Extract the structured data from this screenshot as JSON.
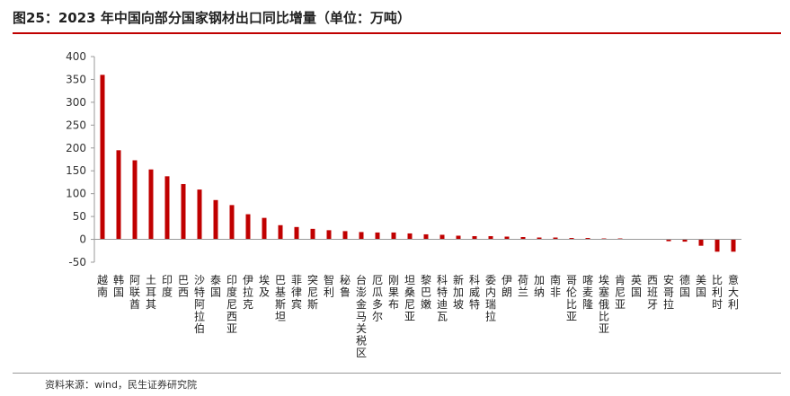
{
  "header": {
    "title": "图25：2023 年中国向部分国家钢材出口同比增量（单位：万吨）"
  },
  "footer": {
    "source": "资料来源：wind，民生证券研究院"
  },
  "colors": {
    "bar": "#c00000",
    "accent_rule": "#c00000",
    "axis": "#999999"
  },
  "chart_data": {
    "type": "bar",
    "title": "",
    "xlabel": "",
    "ylabel": "",
    "ylim": [
      -50,
      400
    ],
    "yticks": [
      400,
      350,
      300,
      250,
      200,
      150,
      100,
      50,
      0,
      -50
    ],
    "grid": false,
    "legend": "none",
    "categories": [
      "越南",
      "韩国",
      "阿联酋",
      "土耳其",
      "印度",
      "巴西",
      "沙特阿拉伯",
      "泰国",
      "印度尼西亚",
      "伊拉克",
      "埃及",
      "巴基斯坦",
      "菲律宾",
      "突尼斯",
      "智利",
      "秘鲁",
      "台澎金马关税区",
      "厄瓜多尔",
      "刚果布",
      "坦桑尼亚",
      "黎巴嫩",
      "科特迪瓦",
      "新加坡",
      "科威特",
      "委内瑞拉",
      "伊朗",
      "荷兰",
      "加纳",
      "南非",
      "哥伦比亚",
      "喀麦隆",
      "埃塞俄比亚",
      "肯尼亚",
      "英国",
      "西班牙",
      "安哥拉",
      "德国",
      "美国",
      "比利时",
      "意大利"
    ],
    "values": [
      360,
      195,
      173,
      153,
      138,
      121,
      109,
      86,
      75,
      55,
      47,
      31,
      27,
      23,
      20,
      18,
      16,
      15,
      15,
      13,
      11,
      10,
      8,
      7,
      7,
      6,
      5,
      4,
      4,
      3,
      3,
      2,
      2,
      1,
      1,
      -4,
      -5,
      -14,
      -27,
      -27
    ]
  }
}
